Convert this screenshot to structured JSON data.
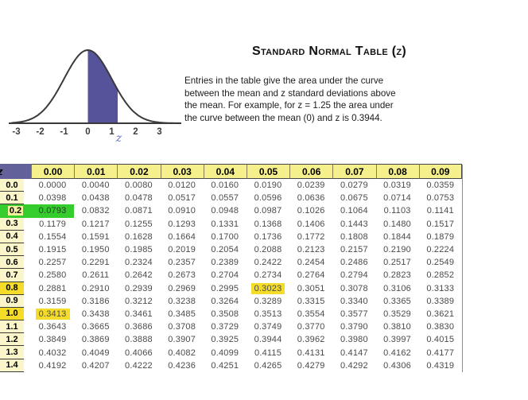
{
  "header": {
    "title": "Standard Normal Table (z)"
  },
  "intro": {
    "lines": [
      "Entries in the table give the area under the curve",
      "between the mean and z standard deviations above",
      "the mean. For example, for z = 1.25 the area under",
      "the curve between the mean (0)  and z  is 0.3944."
    ]
  },
  "curve": {
    "tick_labels": [
      "-3",
      "-2",
      "-1",
      "0",
      "1",
      "2",
      "3"
    ],
    "tick_values": [
      -3,
      -2,
      -1,
      0,
      1,
      2,
      3
    ],
    "z_label": "z",
    "shade_from": 0,
    "shade_to": 1.25
  },
  "colors": {
    "header_bg": "#f6f08c",
    "label_bg": "#fbf6c9",
    "z_cell_bg": "#62619a",
    "highlight_yellow": "#f4dc28",
    "highlight_green": "#35cc2e",
    "curve_fill": "#55549b",
    "curve_stroke": "#3a3a3a",
    "z_label_blue": "#5f6ec4"
  },
  "table": {
    "corner_label": "z",
    "col_headers": [
      "0.00",
      "0.01",
      "0.02",
      "0.03",
      "0.04",
      "0.05",
      "0.06",
      "0.07",
      "0.08",
      "0.09"
    ],
    "rows": [
      {
        "label": "0.0",
        "values": [
          "0.0000",
          "0.0040",
          "0.0080",
          "0.0120",
          "0.0160",
          "0.0190",
          "0.0239",
          "0.0279",
          "0.0319",
          "0.0359"
        ]
      },
      {
        "label": "0.1",
        "values": [
          "0.0398",
          "0.0438",
          "0.0478",
          "0.0517",
          "0.0557",
          "0.0596",
          "0.0636",
          "0.0675",
          "0.0714",
          "0.0753"
        ]
      },
      {
        "label": "0.2",
        "values": [
          "0.0793",
          "0.0832",
          "0.0871",
          "0.0910",
          "0.0948",
          "0.0987",
          "0.1026",
          "0.1064",
          "0.1103",
          "0.1141"
        ]
      },
      {
        "label": "0.3",
        "values": [
          "0.1179",
          "0.1217",
          "0.1255",
          "0.1293",
          "0.1331",
          "0.1368",
          "0.1406",
          "0.1443",
          "0.1480",
          "0.1517"
        ]
      },
      {
        "label": "0.4",
        "values": [
          "0.1554",
          "0.1591",
          "0.1628",
          "0.1664",
          "0.1700",
          "0.1736",
          "0.1772",
          "0.1808",
          "0.1844",
          "0.1879"
        ]
      },
      {
        "label": "0.5",
        "values": [
          "0.1915",
          "0.1950",
          "0.1985",
          "0.2019",
          "0.2054",
          "0.2088",
          "0.2123",
          "0.2157",
          "0.2190",
          "0.2224"
        ]
      },
      {
        "label": "0.6",
        "values": [
          "0.2257",
          "0.2291",
          "0.2324",
          "0.2357",
          "0.2389",
          "0.2422",
          "0.2454",
          "0.2486",
          "0.2517",
          "0.2549"
        ]
      },
      {
        "label": "0.7",
        "values": [
          "0.2580",
          "0.2611",
          "0.2642",
          "0.2673",
          "0.2704",
          "0.2734",
          "0.2764",
          "0.2794",
          "0.2823",
          "0.2852"
        ]
      },
      {
        "label": "0.8",
        "values": [
          "0.2881",
          "0.2910",
          "0.2939",
          "0.2969",
          "0.2995",
          "0.3023",
          "0.3051",
          "0.3078",
          "0.3106",
          "0.3133"
        ]
      },
      {
        "label": "0.9",
        "values": [
          "0.3159",
          "0.3186",
          "0.3212",
          "0.3238",
          "0.3264",
          "0.3289",
          "0.3315",
          "0.3340",
          "0.3365",
          "0.3389"
        ]
      },
      {
        "label": "1.0",
        "values": [
          "0.3413",
          "0.3438",
          "0.3461",
          "0.3485",
          "0.3508",
          "0.3513",
          "0.3554",
          "0.3577",
          "0.3529",
          "0.3621"
        ]
      },
      {
        "label": "1.1",
        "values": [
          "0.3643",
          "0.3665",
          "0.3686",
          "0.3708",
          "0.3729",
          "0.3749",
          "0.3770",
          "0.3790",
          "0.3810",
          "0.3830"
        ]
      },
      {
        "label": "1.2",
        "values": [
          "0.3849",
          "0.3869",
          "0.3888",
          "0.3907",
          "0.3925",
          "0.3944",
          "0.3962",
          "0.3980",
          "0.3997",
          "0.4015"
        ]
      },
      {
        "label": "1.3",
        "values": [
          "0.4032",
          "0.4049",
          "0.4066",
          "0.4082",
          "0.4099",
          "0.4115",
          "0.4131",
          "0.4147",
          "0.4162",
          "0.4177"
        ]
      },
      {
        "label": "1.4",
        "values": [
          "0.4192",
          "0.4207",
          "0.4222",
          "0.4236",
          "0.4251",
          "0.4265",
          "0.4279",
          "0.4292",
          "0.4306",
          "0.4319"
        ]
      }
    ],
    "label_highlights": [
      {
        "row": 2,
        "color": "green"
      },
      {
        "row": 8,
        "color": "yellow"
      },
      {
        "row": 10,
        "color": "yellow"
      }
    ],
    "cell_highlights": [
      {
        "row": 2,
        "col": 0,
        "color": "green"
      },
      {
        "row": 8,
        "col": 5,
        "color": "yellow"
      },
      {
        "row": 10,
        "col": 0,
        "color": "yellow"
      }
    ]
  }
}
